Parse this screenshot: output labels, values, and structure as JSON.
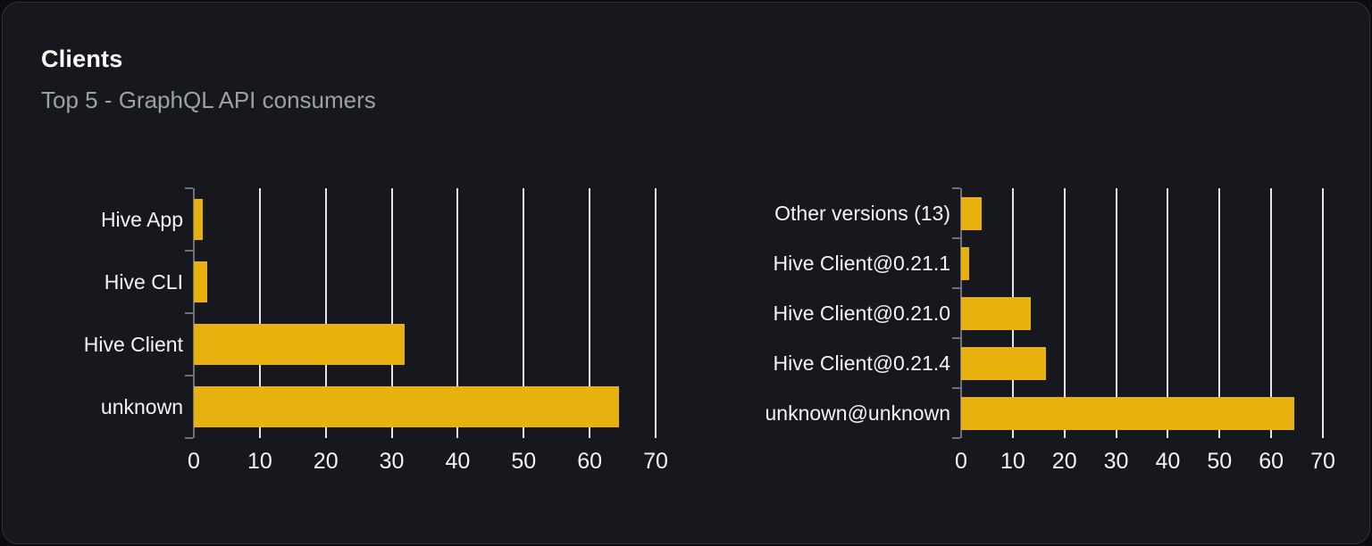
{
  "card": {
    "title": "Clients",
    "subtitle": "Top 5 - GraphQL API consumers"
  },
  "colors": {
    "bar": "#e8b10e",
    "gridline": "#e2e6ee",
    "axis": "#6e737b",
    "card_background": "#16181d",
    "page_background": "#0a0c0f",
    "card_border": "#2c313a",
    "title_text": "#ffffff",
    "subtitle_text": "#9ba1a8",
    "label_text": "#f2f4f6"
  },
  "chart_data": [
    {
      "type": "bar",
      "orientation": "horizontal",
      "title": "",
      "xlabel": "",
      "ylabel": "",
      "categories": [
        "Hive App",
        "Hive CLI",
        "Hive Client",
        "unknown"
      ],
      "values": [
        1.3,
        2,
        32,
        64.5
      ],
      "xlim": [
        0,
        70
      ],
      "xticks": [
        0,
        10,
        20,
        30,
        40,
        50,
        60,
        70
      ],
      "grid": true,
      "legend": false,
      "bar_color": "#e8b10e"
    },
    {
      "type": "bar",
      "orientation": "horizontal",
      "title": "",
      "xlabel": "",
      "ylabel": "",
      "categories": [
        "Other versions (13)",
        "Hive Client@0.21.1",
        "Hive Client@0.21.0",
        "Hive Client@0.21.4",
        "unknown@unknown"
      ],
      "values": [
        4,
        1.5,
        13.5,
        16.5,
        64.5
      ],
      "xlim": [
        0,
        70
      ],
      "xticks": [
        0,
        10,
        20,
        30,
        40,
        50,
        60,
        70
      ],
      "grid": true,
      "legend": false,
      "bar_color": "#e8b10e"
    }
  ]
}
